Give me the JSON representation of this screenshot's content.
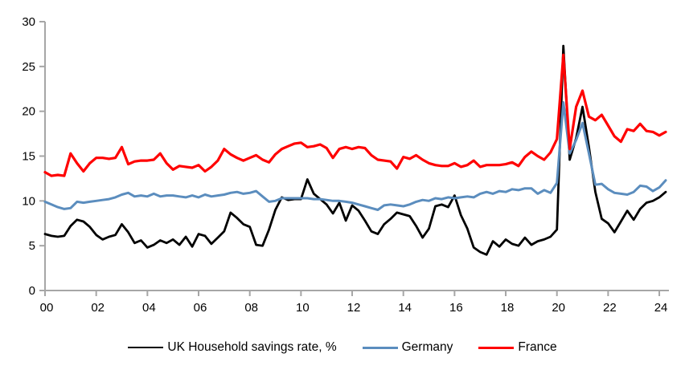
{
  "chart_data": {
    "type": "line",
    "title": "",
    "x_unit": "quarterly",
    "x_start": "2000Q1",
    "x_end": "2024Q2",
    "x_tick_labels": [
      "00",
      "02",
      "04",
      "06",
      "08",
      "10",
      "12",
      "14",
      "16",
      "18",
      "20",
      "22",
      "24"
    ],
    "y_ticks": [
      0,
      5,
      10,
      15,
      20,
      25,
      30
    ],
    "ylim": [
      0,
      30
    ],
    "grid": "off",
    "legend_position": "bottom",
    "axis_color": "#A6A6A6",
    "series": [
      {
        "name": "UK Household savings rate, %",
        "color": "#000000",
        "stroke_width": 2.8,
        "values": [
          6.3,
          6.1,
          6.0,
          6.1,
          7.2,
          7.9,
          7.7,
          7.1,
          6.2,
          5.7,
          6.0,
          6.2,
          7.4,
          6.5,
          5.3,
          5.6,
          4.8,
          5.1,
          5.6,
          5.3,
          5.7,
          5.1,
          6.0,
          4.9,
          6.3,
          6.1,
          5.2,
          5.9,
          6.6,
          8.7,
          8.1,
          7.4,
          7.1,
          5.1,
          5.0,
          6.8,
          9.0,
          10.4,
          10.1,
          10.2,
          10.2,
          12.4,
          10.8,
          10.2,
          9.6,
          8.6,
          9.8,
          7.8,
          9.5,
          8.9,
          7.8,
          6.6,
          6.3,
          7.4,
          8.0,
          8.7,
          8.5,
          8.3,
          7.2,
          5.9,
          6.9,
          9.4,
          9.6,
          9.3,
          10.6,
          8.4,
          6.9,
          4.8,
          4.3,
          4.0,
          5.5,
          4.9,
          5.7,
          5.2,
          5.0,
          5.9,
          5.1,
          5.5,
          5.7,
          6.0,
          6.8,
          27.3,
          14.6,
          17.0,
          20.5,
          16.0,
          11.0,
          8.0,
          7.5,
          6.5,
          7.7,
          8.9,
          7.9,
          9.1,
          9.8,
          10.0,
          10.4,
          11.0
        ]
      },
      {
        "name": "Germany",
        "color": "#5B8DBE",
        "stroke_width": 3.0,
        "values": [
          9.9,
          9.6,
          9.3,
          9.1,
          9.2,
          9.9,
          9.8,
          9.9,
          10.0,
          10.1,
          10.2,
          10.4,
          10.7,
          10.9,
          10.5,
          10.6,
          10.5,
          10.8,
          10.5,
          10.6,
          10.6,
          10.5,
          10.4,
          10.6,
          10.4,
          10.7,
          10.5,
          10.6,
          10.7,
          10.9,
          11.0,
          10.8,
          10.9,
          11.1,
          10.5,
          9.9,
          10.0,
          10.3,
          10.3,
          10.3,
          10.3,
          10.3,
          10.2,
          10.2,
          10.1,
          10.0,
          10.0,
          9.9,
          9.8,
          9.6,
          9.4,
          9.2,
          9.0,
          9.5,
          9.6,
          9.5,
          9.4,
          9.6,
          9.9,
          10.1,
          10.0,
          10.3,
          10.2,
          10.4,
          10.3,
          10.4,
          10.5,
          10.4,
          10.8,
          11.0,
          10.8,
          11.1,
          11.0,
          11.3,
          11.2,
          11.4,
          11.4,
          10.8,
          11.2,
          10.9,
          12.0,
          21.0,
          15.3,
          16.8,
          18.7,
          15.3,
          11.8,
          11.9,
          11.3,
          10.9,
          10.8,
          10.7,
          11.0,
          11.7,
          11.6,
          11.1,
          11.5,
          12.3
        ]
      },
      {
        "name": "France",
        "color": "#FF0000",
        "stroke_width": 3.2,
        "values": [
          13.2,
          12.8,
          12.9,
          12.8,
          15.3,
          14.2,
          13.3,
          14.2,
          14.8,
          14.8,
          14.7,
          14.8,
          16.0,
          14.1,
          14.4,
          14.5,
          14.5,
          14.6,
          15.3,
          14.2,
          13.5,
          13.9,
          13.8,
          13.7,
          14.0,
          13.3,
          13.8,
          14.5,
          15.8,
          15.2,
          14.8,
          14.5,
          14.8,
          15.1,
          14.6,
          14.3,
          15.2,
          15.8,
          16.1,
          16.4,
          16.5,
          16.0,
          16.1,
          16.3,
          15.9,
          14.8,
          15.8,
          16.0,
          15.8,
          16.0,
          15.9,
          15.1,
          14.6,
          14.5,
          14.4,
          13.6,
          14.9,
          14.7,
          15.1,
          14.6,
          14.2,
          14.0,
          13.9,
          13.9,
          14.2,
          13.8,
          14.0,
          14.5,
          13.8,
          14.0,
          14.0,
          14.0,
          14.1,
          14.3,
          13.9,
          14.9,
          15.5,
          15.0,
          14.6,
          15.4,
          16.9,
          26.3,
          15.8,
          20.5,
          22.3,
          19.4,
          19.0,
          19.6,
          18.4,
          17.2,
          16.6,
          18.0,
          17.8,
          18.6,
          17.8,
          17.7,
          17.3,
          17.7
        ]
      }
    ]
  },
  "legend": {
    "items": [
      {
        "label": "UK Household savings rate, %",
        "color": "#000000"
      },
      {
        "label": "Germany",
        "color": "#5B8DBE"
      },
      {
        "label": "France",
        "color": "#FF0000"
      }
    ]
  }
}
